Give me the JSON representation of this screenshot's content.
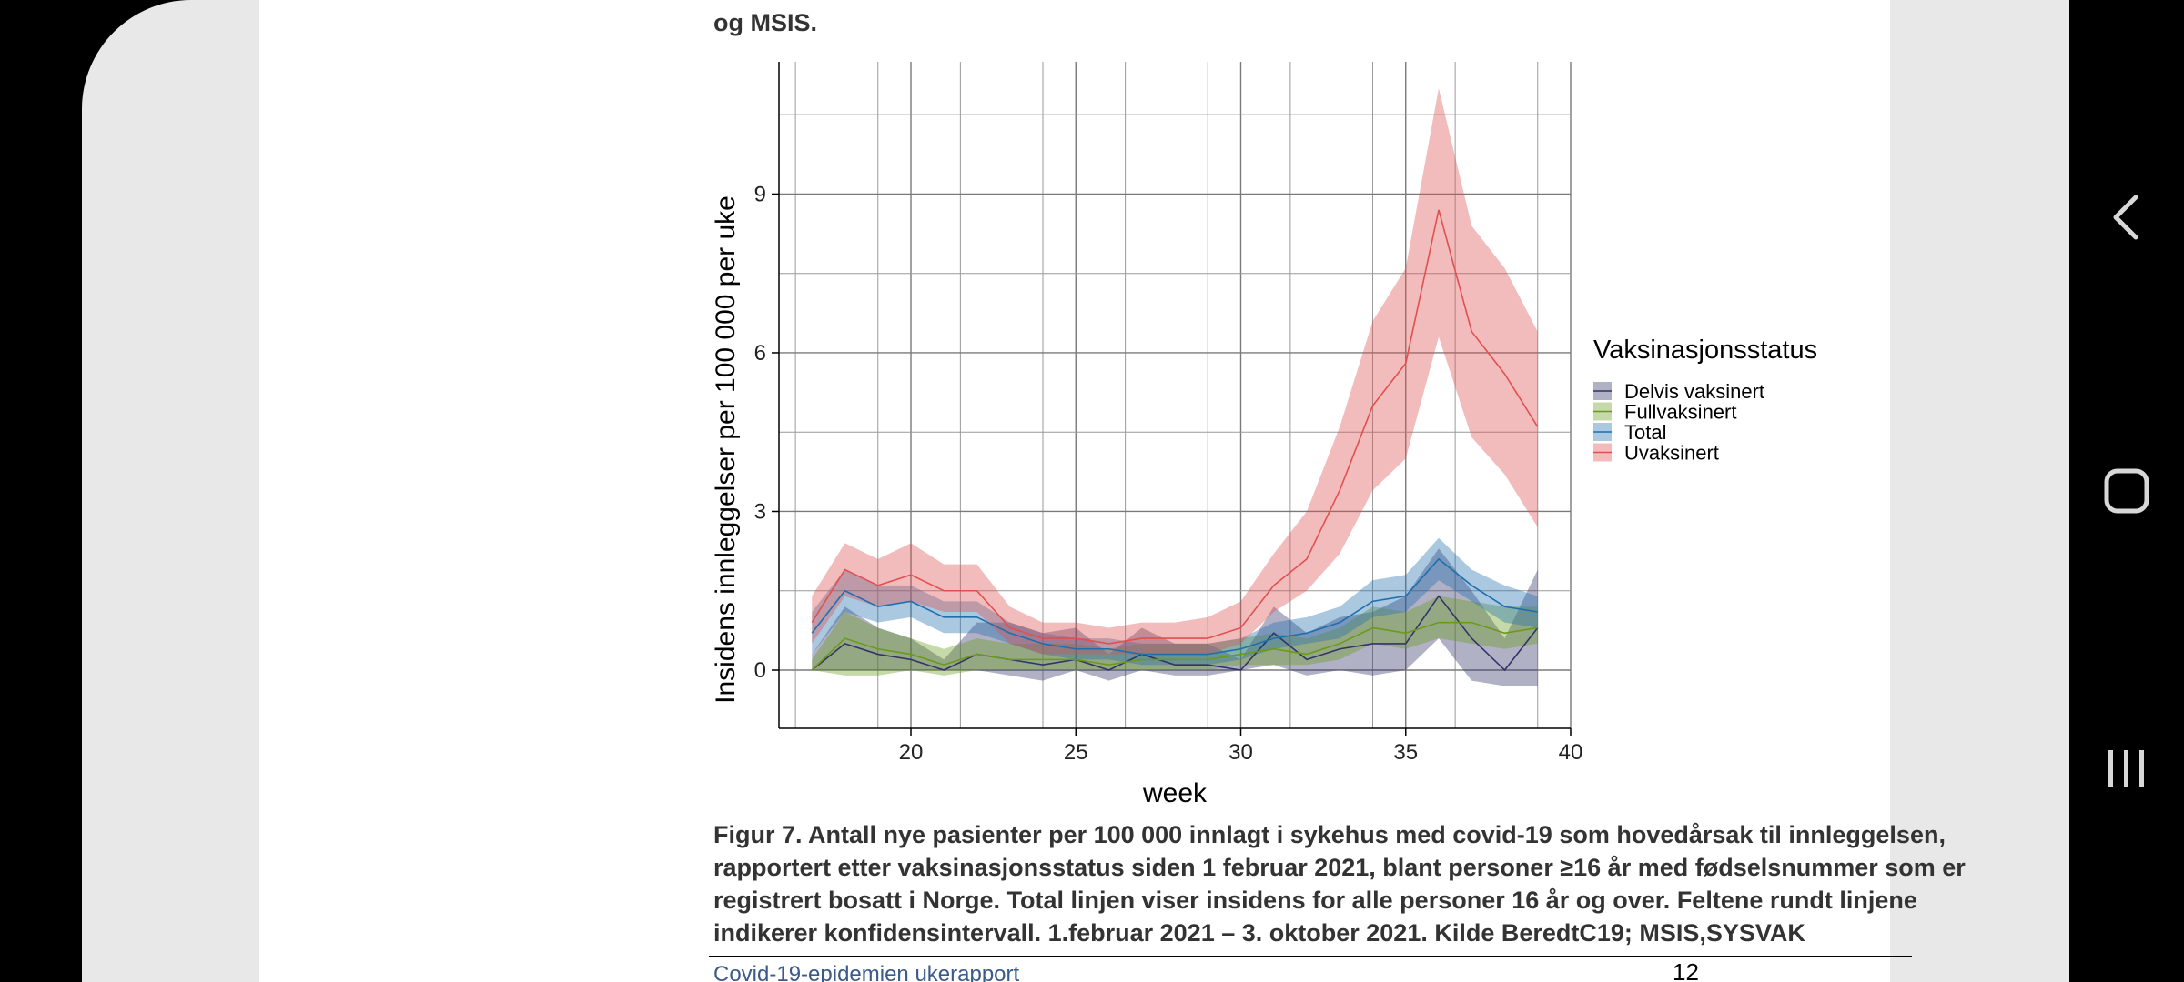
{
  "document": {
    "top_text": "og MSIS.",
    "caption": "Figur 7. Antall nye pasienter per 100 000 innlagt i sykehus med covid-19 som hovedårsak til innleggelsen, rapportert etter vaksinasjonsstatus siden 1 februar 2021, blant personer ≥16 år med fødselsnummer som er registrert bosatt i Norge. Total linjen viser insidens for alle personer 16 år og over. Feltene rundt linjene indikerer konfidensintervall. 1.februar 2021 – 3. oktober 2021. Kilde BeredtC19; MSIS,SYSVAK",
    "footer_title": "Covid-19-epidemien ukerapport",
    "page_number": "12"
  },
  "navigation": {
    "back_icon": "chevron-left-icon",
    "home_icon": "rounded-square-icon",
    "recents_icon": "three-bars-icon"
  },
  "chart_data": {
    "type": "area",
    "title": "",
    "xlabel": "week",
    "ylabel": "Insidens innleggelser per 100 000 per uke",
    "xlim": [
      16,
      40
    ],
    "ylim": [
      -1.1,
      11.5
    ],
    "xticks": [
      20,
      25,
      30,
      35,
      40
    ],
    "yticks": [
      0,
      3,
      6,
      9
    ],
    "grid": true,
    "legend_title": "Vaksinasjonsstatus",
    "legend_position": "right",
    "x": [
      17,
      18,
      19,
      20,
      21,
      22,
      23,
      24,
      25,
      26,
      27,
      28,
      29,
      30,
      31,
      32,
      33,
      34,
      35,
      36,
      37,
      38,
      39
    ],
    "series": [
      {
        "name": "Delvis vaksinert",
        "color": "#33336a",
        "values": [
          0.0,
          0.5,
          0.3,
          0.2,
          0.0,
          0.3,
          0.2,
          0.1,
          0.2,
          0.0,
          0.3,
          0.1,
          0.1,
          0.0,
          0.7,
          0.2,
          0.4,
          0.5,
          0.5,
          1.4,
          0.6,
          0.0,
          0.8
        ],
        "lower": [
          0.0,
          0.0,
          0.0,
          0.0,
          0.0,
          0.0,
          -0.1,
          -0.2,
          0.0,
          -0.2,
          0.0,
          -0.1,
          -0.1,
          0.0,
          0.1,
          -0.1,
          0.0,
          -0.1,
          0.0,
          0.6,
          -0.2,
          -0.3,
          -0.3
        ],
        "upper": [
          0.3,
          1.2,
          0.8,
          0.6,
          0.2,
          0.9,
          0.9,
          0.7,
          0.8,
          0.3,
          0.8,
          0.5,
          0.5,
          0.2,
          1.2,
          0.7,
          1.0,
          1.1,
          1.4,
          2.3,
          1.5,
          0.6,
          1.9
        ]
      },
      {
        "name": "Fullvaksinert",
        "color": "#6a9a1a",
        "values": [
          0.0,
          0.6,
          0.4,
          0.3,
          0.1,
          0.3,
          0.2,
          0.2,
          0.2,
          0.1,
          0.2,
          0.2,
          0.2,
          0.3,
          0.4,
          0.3,
          0.5,
          0.8,
          0.7,
          0.9,
          0.9,
          0.7,
          0.8
        ],
        "lower": [
          0.0,
          -0.1,
          -0.1,
          0.0,
          -0.1,
          0.0,
          0.0,
          0.0,
          0.0,
          0.0,
          0.0,
          0.0,
          0.0,
          0.1,
          0.1,
          0.1,
          0.2,
          0.5,
          0.4,
          0.6,
          0.5,
          0.4,
          0.5
        ],
        "upper": [
          0.2,
          1.1,
          0.8,
          0.6,
          0.4,
          0.6,
          0.5,
          0.5,
          0.5,
          0.4,
          0.5,
          0.5,
          0.5,
          0.6,
          0.7,
          0.6,
          0.8,
          1.2,
          1.1,
          1.4,
          1.3,
          1.2,
          1.2
        ]
      },
      {
        "name": "Total",
        "color": "#1f6fae",
        "values": [
          0.7,
          1.5,
          1.2,
          1.3,
          1.0,
          1.0,
          0.7,
          0.5,
          0.4,
          0.4,
          0.3,
          0.3,
          0.3,
          0.4,
          0.6,
          0.7,
          0.9,
          1.3,
          1.4,
          2.1,
          1.6,
          1.2,
          1.1
        ],
        "lower": [
          0.3,
          1.1,
          0.9,
          1.0,
          0.7,
          0.7,
          0.5,
          0.3,
          0.2,
          0.2,
          0.1,
          0.1,
          0.1,
          0.2,
          0.4,
          0.5,
          0.6,
          1.0,
          1.1,
          1.7,
          1.3,
          0.9,
          0.8
        ],
        "upper": [
          1.1,
          1.9,
          1.6,
          1.6,
          1.3,
          1.3,
          0.9,
          0.7,
          0.6,
          0.6,
          0.5,
          0.5,
          0.5,
          0.6,
          0.9,
          1.0,
          1.2,
          1.7,
          1.8,
          2.5,
          1.9,
          1.6,
          1.4
        ]
      },
      {
        "name": "Uvaksinert",
        "color": "#e05050",
        "values": [
          0.9,
          1.9,
          1.6,
          1.8,
          1.5,
          1.5,
          0.8,
          0.6,
          0.6,
          0.5,
          0.6,
          0.6,
          0.6,
          0.8,
          1.6,
          2.1,
          3.4,
          5.0,
          5.8,
          8.7,
          6.4,
          5.6,
          4.6
        ],
        "lower": [
          0.5,
          1.4,
          1.2,
          1.3,
          1.1,
          1.1,
          0.5,
          0.3,
          0.3,
          0.3,
          0.3,
          0.3,
          0.3,
          0.5,
          1.1,
          1.5,
          2.2,
          3.4,
          4.0,
          6.3,
          4.4,
          3.7,
          2.7
        ],
        "upper": [
          1.4,
          2.4,
          2.1,
          2.4,
          2.0,
          2.0,
          1.2,
          0.9,
          0.9,
          0.8,
          0.9,
          0.9,
          1.0,
          1.3,
          2.2,
          3.0,
          4.6,
          6.6,
          7.6,
          11.0,
          8.4,
          7.6,
          6.4
        ]
      }
    ]
  }
}
